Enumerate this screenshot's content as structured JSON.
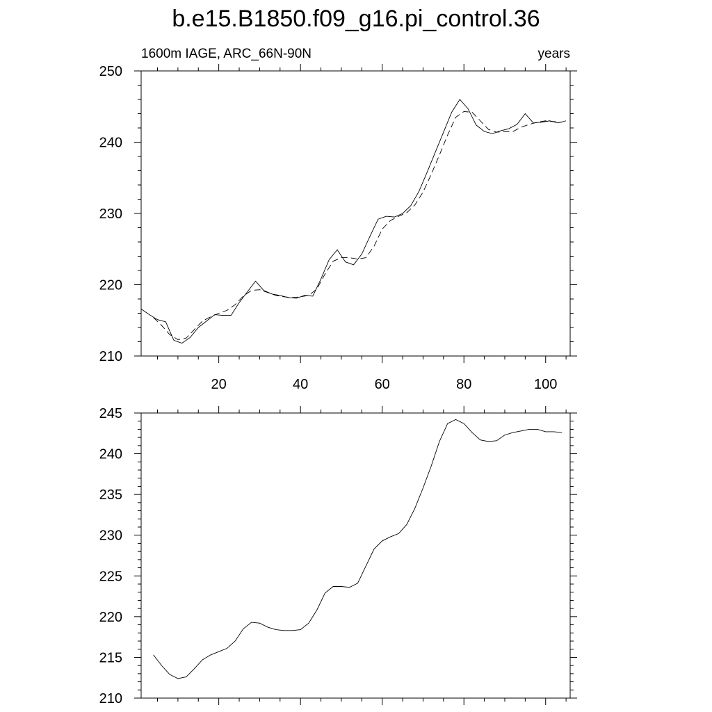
{
  "title": "b.e15.B1850.f09_g16.pi_control.36",
  "chart_data": [
    {
      "type": "line",
      "subtitle_left": "1600m IAGE, ARC_66N-90N",
      "subtitle_right": "years",
      "xlim": [
        1,
        106
      ],
      "ylim": [
        210,
        250
      ],
      "xticks": [
        20,
        40,
        60,
        80,
        100
      ],
      "xtick_labels": [
        "20",
        "40",
        "60",
        "80",
        "100"
      ],
      "yticks": [
        210,
        220,
        230,
        240,
        250
      ],
      "ytick_labels": [
        "210",
        "220",
        "230",
        "240",
        "250"
      ],
      "series": [
        {
          "style": "solid",
          "x": [
            1,
            3,
            5,
            7,
            9,
            11,
            13,
            15,
            17,
            19,
            21,
            23,
            25,
            27,
            29,
            31,
            33,
            35,
            37,
            39,
            41,
            43,
            45,
            47,
            49,
            51,
            53,
            55,
            57,
            59,
            61,
            63,
            65,
            67,
            69,
            71,
            73,
            75,
            77,
            79,
            81,
            83,
            85,
            87,
            89,
            91,
            93,
            95,
            97,
            99,
            101,
            103,
            105
          ],
          "y": [
            216.6,
            215.8,
            215.1,
            214.8,
            212.2,
            211.8,
            212.6,
            214.0,
            214.9,
            215.8,
            215.7,
            215.7,
            217.5,
            219.0,
            220.5,
            219.2,
            218.7,
            218.5,
            218.2,
            218.1,
            218.5,
            218.4,
            220.8,
            223.5,
            224.9,
            223.2,
            222.8,
            224.3,
            226.8,
            229.2,
            229.6,
            229.5,
            230.0,
            231.1,
            233.1,
            235.8,
            238.6,
            241.4,
            244.2,
            246.0,
            244.7,
            242.4,
            241.5,
            241.2,
            241.6,
            241.9,
            242.5,
            244.0,
            242.7,
            242.8,
            243.0,
            242.7,
            243.0
          ]
        },
        {
          "style": "dashed",
          "x": [
            4,
            6,
            8,
            10,
            12,
            14,
            16,
            18,
            20,
            22,
            24,
            26,
            28,
            30,
            32,
            34,
            36,
            38,
            40,
            42,
            44,
            46,
            48,
            50,
            52,
            54,
            56,
            58,
            60,
            62,
            64,
            66,
            68,
            70,
            72,
            74,
            76,
            78,
            80,
            82,
            84,
            86,
            88,
            90,
            92,
            94,
            96,
            98,
            100,
            102,
            104
          ],
          "y": [
            215.4,
            214.3,
            213.0,
            212.3,
            212.5,
            213.7,
            214.9,
            215.5,
            216.0,
            216.4,
            217.2,
            218.4,
            219.2,
            219.3,
            218.9,
            218.5,
            218.3,
            218.2,
            218.3,
            218.5,
            219.4,
            221.5,
            223.3,
            223.8,
            223.8,
            223.6,
            223.8,
            225.4,
            227.8,
            229.0,
            229.6,
            230.1,
            231.2,
            233.0,
            235.5,
            238.2,
            241.0,
            243.5,
            244.3,
            244.2,
            243.0,
            241.8,
            241.4,
            241.5,
            241.5,
            242.1,
            242.5,
            242.8,
            243.0,
            242.9,
            242.8
          ]
        }
      ]
    },
    {
      "type": "line",
      "xlim": [
        1,
        106
      ],
      "ylim": [
        210,
        245
      ],
      "xticks": [
        20,
        40,
        60,
        80,
        100
      ],
      "yticks": [
        210,
        215,
        220,
        225,
        230,
        235,
        240,
        245
      ],
      "ytick_labels": [
        "210",
        "215",
        "220",
        "225",
        "230",
        "235",
        "240",
        "245"
      ],
      "series": [
        {
          "style": "solid",
          "x": [
            4,
            6,
            8,
            10,
            12,
            14,
            16,
            18,
            20,
            22,
            24,
            26,
            28,
            30,
            32,
            34,
            36,
            38,
            40,
            42,
            44,
            46,
            48,
            50,
            52,
            54,
            56,
            58,
            60,
            62,
            64,
            66,
            68,
            70,
            72,
            74,
            76,
            78,
            80,
            82,
            84,
            86,
            88,
            90,
            92,
            94,
            96,
            98,
            100,
            102,
            104
          ],
          "y": [
            215.3,
            214.0,
            212.9,
            212.4,
            212.6,
            213.6,
            214.7,
            215.3,
            215.7,
            216.1,
            217.0,
            218.5,
            219.3,
            219.2,
            218.7,
            218.4,
            218.3,
            218.3,
            218.4,
            219.2,
            220.8,
            222.9,
            223.7,
            223.7,
            223.6,
            224.1,
            226.2,
            228.3,
            229.3,
            229.8,
            230.2,
            231.3,
            233.3,
            235.8,
            238.5,
            241.5,
            243.7,
            244.2,
            243.7,
            242.6,
            241.7,
            241.5,
            241.6,
            242.3,
            242.6,
            242.8,
            243.0,
            243.0,
            242.7,
            242.7,
            242.6
          ]
        }
      ]
    }
  ]
}
